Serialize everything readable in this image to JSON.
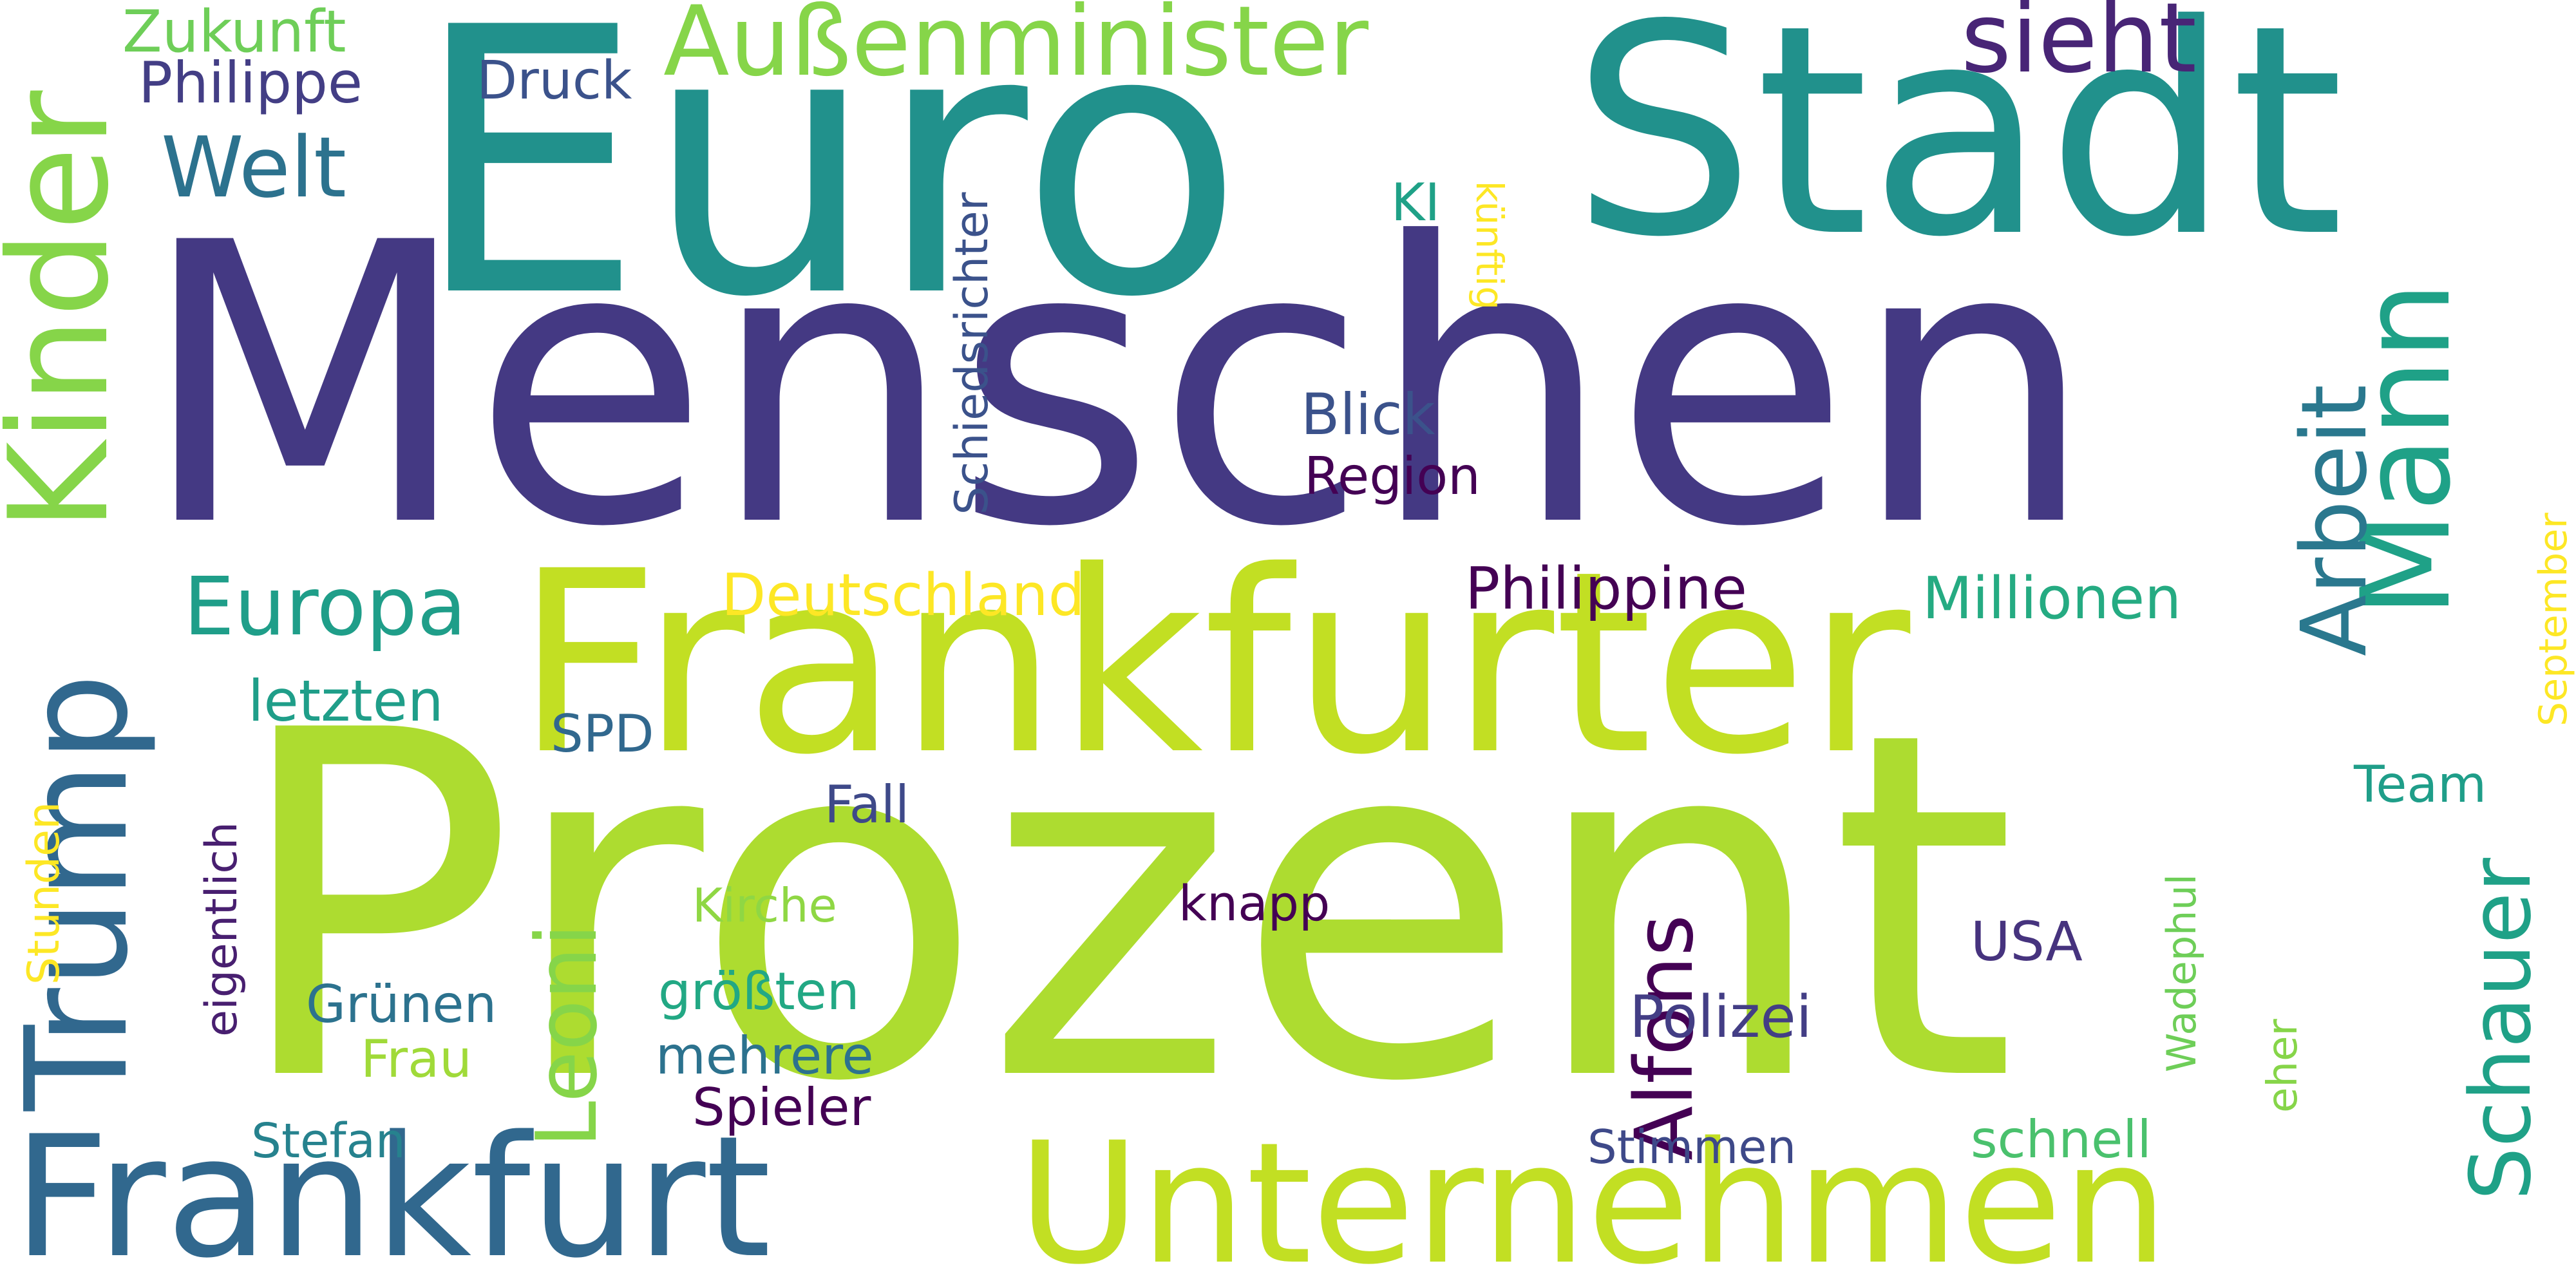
{
  "wordcloud": {
    "words": [
      {
        "text": "Menschen",
        "color": "#443983"
      },
      {
        "text": "Prozent",
        "color": "#addc30"
      },
      {
        "text": "Euro",
        "color": "#21918c"
      },
      {
        "text": "Stadt",
        "color": "#21918c"
      },
      {
        "text": "Frankfurter",
        "color": "#c2df23"
      },
      {
        "text": "Unternehmen",
        "color": "#c2df23"
      },
      {
        "text": "Frankfurt",
        "color": "#31688e"
      },
      {
        "text": "Kinder",
        "color": "#86d549"
      },
      {
        "text": "Trump",
        "color": "#31688e"
      },
      {
        "text": "Mann",
        "color": "#1fa187"
      },
      {
        "text": "Arbeit",
        "color": "#2a788e"
      },
      {
        "text": "Schauer",
        "color": "#1fa187"
      },
      {
        "text": "Alfons",
        "color": "#440154"
      },
      {
        "text": "Leoni",
        "color": "#86d549"
      },
      {
        "text": "Außenminister",
        "color": "#86d549"
      },
      {
        "text": "sieht",
        "color": "#482576"
      },
      {
        "text": "Welt",
        "color": "#2c728e"
      },
      {
        "text": "Zukunft",
        "color": "#6ece58"
      },
      {
        "text": "Philippe",
        "color": "#433e85"
      },
      {
        "text": "Druck",
        "color": "#3b528b"
      },
      {
        "text": "Europa",
        "color": "#1f9e89"
      },
      {
        "text": "Deutschland",
        "color": "#fde725"
      },
      {
        "text": "Philippine",
        "color": "#440154"
      },
      {
        "text": "Millionen",
        "color": "#25ab82"
      },
      {
        "text": "Schiedsrichter",
        "color": "#3b528b"
      },
      {
        "text": "künftig",
        "color": "#fde725"
      },
      {
        "text": "KI",
        "color": "#1fa187"
      },
      {
        "text": "Blick",
        "color": "#3b528b"
      },
      {
        "text": "Region",
        "color": "#440154"
      },
      {
        "text": "letzten",
        "color": "#1f9e89"
      },
      {
        "text": "SPD",
        "color": "#31688e"
      },
      {
        "text": "September",
        "color": "#fde725"
      },
      {
        "text": "Team",
        "color": "#1f9e89"
      },
      {
        "text": "Fall",
        "color": "#3e4989"
      },
      {
        "text": "Stunden",
        "color": "#fde725"
      },
      {
        "text": "eigentlich",
        "color": "#481f70"
      },
      {
        "text": "Kirche",
        "color": "#8fd744"
      },
      {
        "text": "knapp",
        "color": "#440154"
      },
      {
        "text": "USA",
        "color": "#46337e"
      },
      {
        "text": "Wadephul",
        "color": "#6ece58"
      },
      {
        "text": "größten",
        "color": "#22a884"
      },
      {
        "text": "Grünen",
        "color": "#2c728e"
      },
      {
        "text": "Polizei",
        "color": "#433e85"
      },
      {
        "text": "Frau",
        "color": "#a0da39"
      },
      {
        "text": "mehrere",
        "color": "#2c728e"
      },
      {
        "text": "eher",
        "color": "#86d549"
      },
      {
        "text": "Spieler",
        "color": "#440154"
      },
      {
        "text": "Stefan",
        "color": "#26828e"
      },
      {
        "text": "Stimmen",
        "color": "#3e4989"
      },
      {
        "text": "schnell",
        "color": "#4ac16d"
      }
    ]
  }
}
